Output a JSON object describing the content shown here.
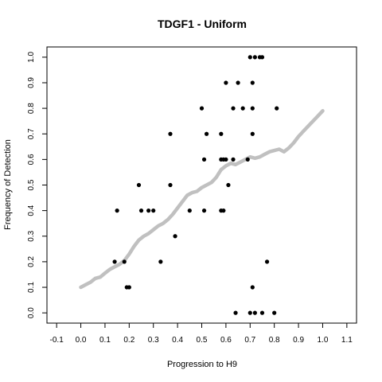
{
  "chart_data": {
    "type": "scatter",
    "title": "TDGF1 - Uniform",
    "xlabel": "Progression to H9",
    "ylabel": "Frequency of Detection",
    "xlim": [
      -0.14,
      1.14
    ],
    "ylim": [
      -0.04,
      1.04
    ],
    "x_ticks": [
      "-0.1",
      "0.0",
      "0.1",
      "0.2",
      "0.3",
      "0.4",
      "0.5",
      "0.6",
      "0.7",
      "0.8",
      "0.9",
      "1.0",
      "1.1"
    ],
    "x_tick_values": [
      -0.1,
      0.0,
      0.1,
      0.2,
      0.3,
      0.4,
      0.5,
      0.6,
      0.7,
      0.8,
      0.9,
      1.0,
      1.1
    ],
    "y_ticks": [
      "0.0",
      "0.1",
      "0.2",
      "0.3",
      "0.4",
      "0.5",
      "0.6",
      "0.7",
      "0.8",
      "0.9",
      "1.0"
    ],
    "y_tick_values": [
      0.0,
      0.1,
      0.2,
      0.3,
      0.4,
      0.5,
      0.6,
      0.7,
      0.8,
      0.9,
      1.0
    ],
    "grid": false,
    "series": [
      {
        "type": "scatter",
        "color": "#000000",
        "x": [
          0.7,
          0.72,
          0.74,
          0.75,
          0.6,
          0.65,
          0.71,
          0.5,
          0.63,
          0.67,
          0.71,
          0.81,
          0.37,
          0.52,
          0.58,
          0.71,
          0.51,
          0.58,
          0.59,
          0.6,
          0.63,
          0.69,
          0.24,
          0.37,
          0.61,
          0.15,
          0.25,
          0.28,
          0.3,
          0.45,
          0.51,
          0.59,
          0.58,
          0.39,
          0.14,
          0.18,
          0.33,
          0.77,
          0.19,
          0.2,
          0.71,
          0.64,
          0.7,
          0.72,
          0.75,
          0.8
        ],
        "y": [
          1.0,
          1.0,
          1.0,
          1.0,
          0.9,
          0.9,
          0.9,
          0.8,
          0.8,
          0.8,
          0.8,
          0.8,
          0.7,
          0.7,
          0.7,
          0.7,
          0.6,
          0.6,
          0.6,
          0.6,
          0.6,
          0.6,
          0.5,
          0.5,
          0.5,
          0.4,
          0.4,
          0.4,
          0.4,
          0.4,
          0.4,
          0.4,
          0.4,
          0.3,
          0.2,
          0.2,
          0.2,
          0.2,
          0.1,
          0.1,
          0.1,
          0.0,
          0.0,
          0.0,
          0.0,
          0.0
        ]
      },
      {
        "type": "line",
        "color": "#c0c0c0",
        "x": [
          0.0,
          0.02,
          0.04,
          0.06,
          0.08,
          0.1,
          0.12,
          0.14,
          0.16,
          0.18,
          0.2,
          0.22,
          0.24,
          0.26,
          0.28,
          0.3,
          0.32,
          0.34,
          0.36,
          0.38,
          0.4,
          0.42,
          0.44,
          0.46,
          0.48,
          0.5,
          0.52,
          0.54,
          0.56,
          0.58,
          0.6,
          0.62,
          0.64,
          0.66,
          0.68,
          0.7,
          0.72,
          0.74,
          0.76,
          0.78,
          0.8,
          0.82,
          0.84,
          0.86,
          0.88,
          0.9,
          0.92,
          0.94,
          0.96,
          0.98,
          1.0
        ],
        "y": [
          0.1,
          0.11,
          0.12,
          0.135,
          0.14,
          0.155,
          0.17,
          0.18,
          0.19,
          0.205,
          0.23,
          0.26,
          0.285,
          0.3,
          0.31,
          0.325,
          0.34,
          0.35,
          0.365,
          0.385,
          0.41,
          0.435,
          0.46,
          0.47,
          0.475,
          0.49,
          0.5,
          0.51,
          0.53,
          0.56,
          0.575,
          0.585,
          0.58,
          0.59,
          0.6,
          0.61,
          0.605,
          0.61,
          0.62,
          0.63,
          0.635,
          0.64,
          0.63,
          0.645,
          0.665,
          0.69,
          0.71,
          0.73,
          0.75,
          0.77,
          0.79
        ]
      }
    ]
  }
}
